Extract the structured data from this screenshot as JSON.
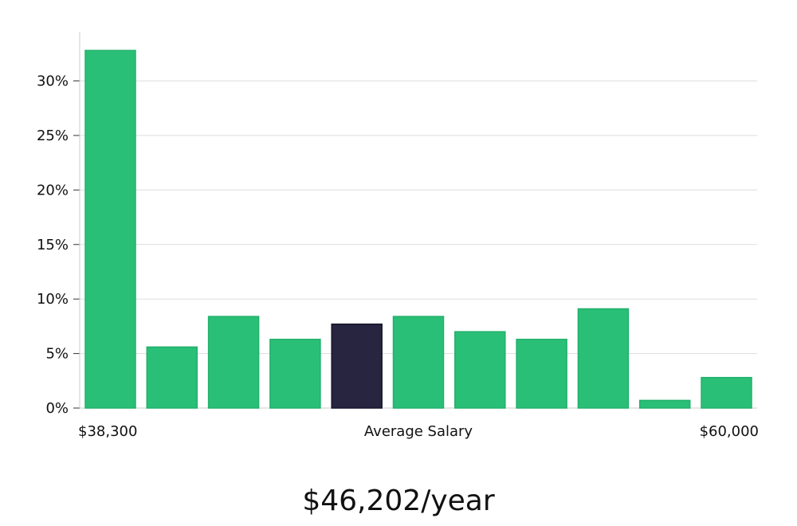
{
  "chart_data": {
    "type": "bar",
    "values": [
      32.8,
      5.6,
      8.4,
      6.3,
      7.7,
      8.4,
      7.0,
      6.3,
      9.1,
      0.7,
      2.8
    ],
    "highlight_index": 4,
    "y_ticks": [
      "0%",
      "5%",
      "10%",
      "15%",
      "20%",
      "25%",
      "30%"
    ],
    "y_tick_values": [
      0,
      5,
      10,
      15,
      20,
      25,
      30
    ],
    "ylim": [
      0,
      34.5
    ],
    "grid": true,
    "x_labels": {
      "left": "$38,300",
      "center": "Average Salary",
      "right": "$60,000"
    },
    "colors": {
      "bar": "#2abf77",
      "highlight": "#27253f",
      "grid": "#dddddd",
      "axis": "#cccccc"
    }
  },
  "salary_text": "$46,202/year"
}
